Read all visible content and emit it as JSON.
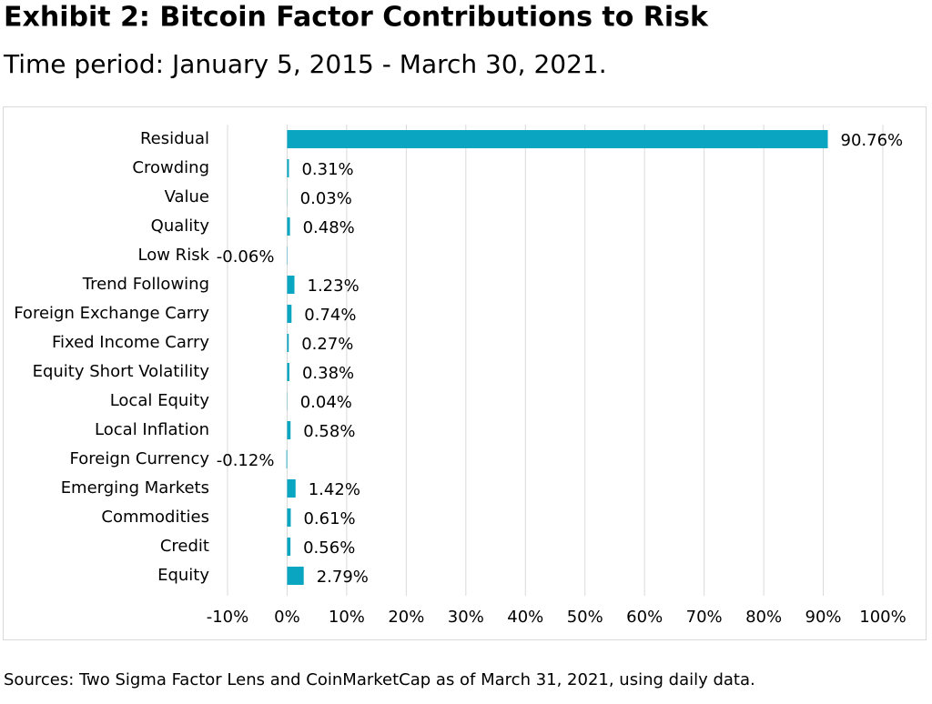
{
  "chart_data": {
    "type": "bar",
    "orientation": "horizontal",
    "title": "Exhibit 2: Bitcoin Factor Contributions to Risk",
    "subtitle": "Time period: January 5, 2015 - March 30, 2021.",
    "source": "Sources: Two Sigma Factor Lens and CoinMarketCap as of March 31, 2021, using daily data.",
    "categories": [
      "Residual",
      "Crowding",
      "Value",
      "Quality",
      "Low Risk",
      "Trend Following",
      "Foreign Exchange Carry",
      "Fixed Income Carry",
      "Equity Short Volatility",
      "Local Equity",
      "Local Inflation",
      "Foreign Currency",
      "Emerging Markets",
      "Commodities",
      "Credit",
      "Equity"
    ],
    "values": [
      90.76,
      0.31,
      0.03,
      0.48,
      -0.06,
      1.23,
      0.74,
      0.27,
      0.38,
      0.04,
      0.58,
      -0.12,
      1.42,
      0.61,
      0.56,
      2.79
    ],
    "value_labels": [
      "90.76%",
      "0.31%",
      "0.03%",
      "0.48%",
      "-0.06%",
      "1.23%",
      "0.74%",
      "0.27%",
      "0.38%",
      "0.04%",
      "0.58%",
      "-0.12%",
      "1.42%",
      "0.61%",
      "0.56%",
      "2.79%"
    ],
    "color": "#0aa6c1",
    "xlim": [
      -10,
      100
    ],
    "xticks": [
      {
        "value": -10,
        "label": "-10%"
      },
      {
        "value": 0,
        "label": "0%"
      },
      {
        "value": 10,
        "label": "10%"
      },
      {
        "value": 20,
        "label": "20%"
      },
      {
        "value": 30,
        "label": "30%"
      },
      {
        "value": 40,
        "label": "40%"
      },
      {
        "value": 50,
        "label": "50%"
      },
      {
        "value": 60,
        "label": "60%"
      },
      {
        "value": 70,
        "label": "70%"
      },
      {
        "value": 80,
        "label": "80%"
      },
      {
        "value": 90,
        "label": "90%"
      },
      {
        "value": 100,
        "label": "100%"
      }
    ],
    "grid": true
  }
}
